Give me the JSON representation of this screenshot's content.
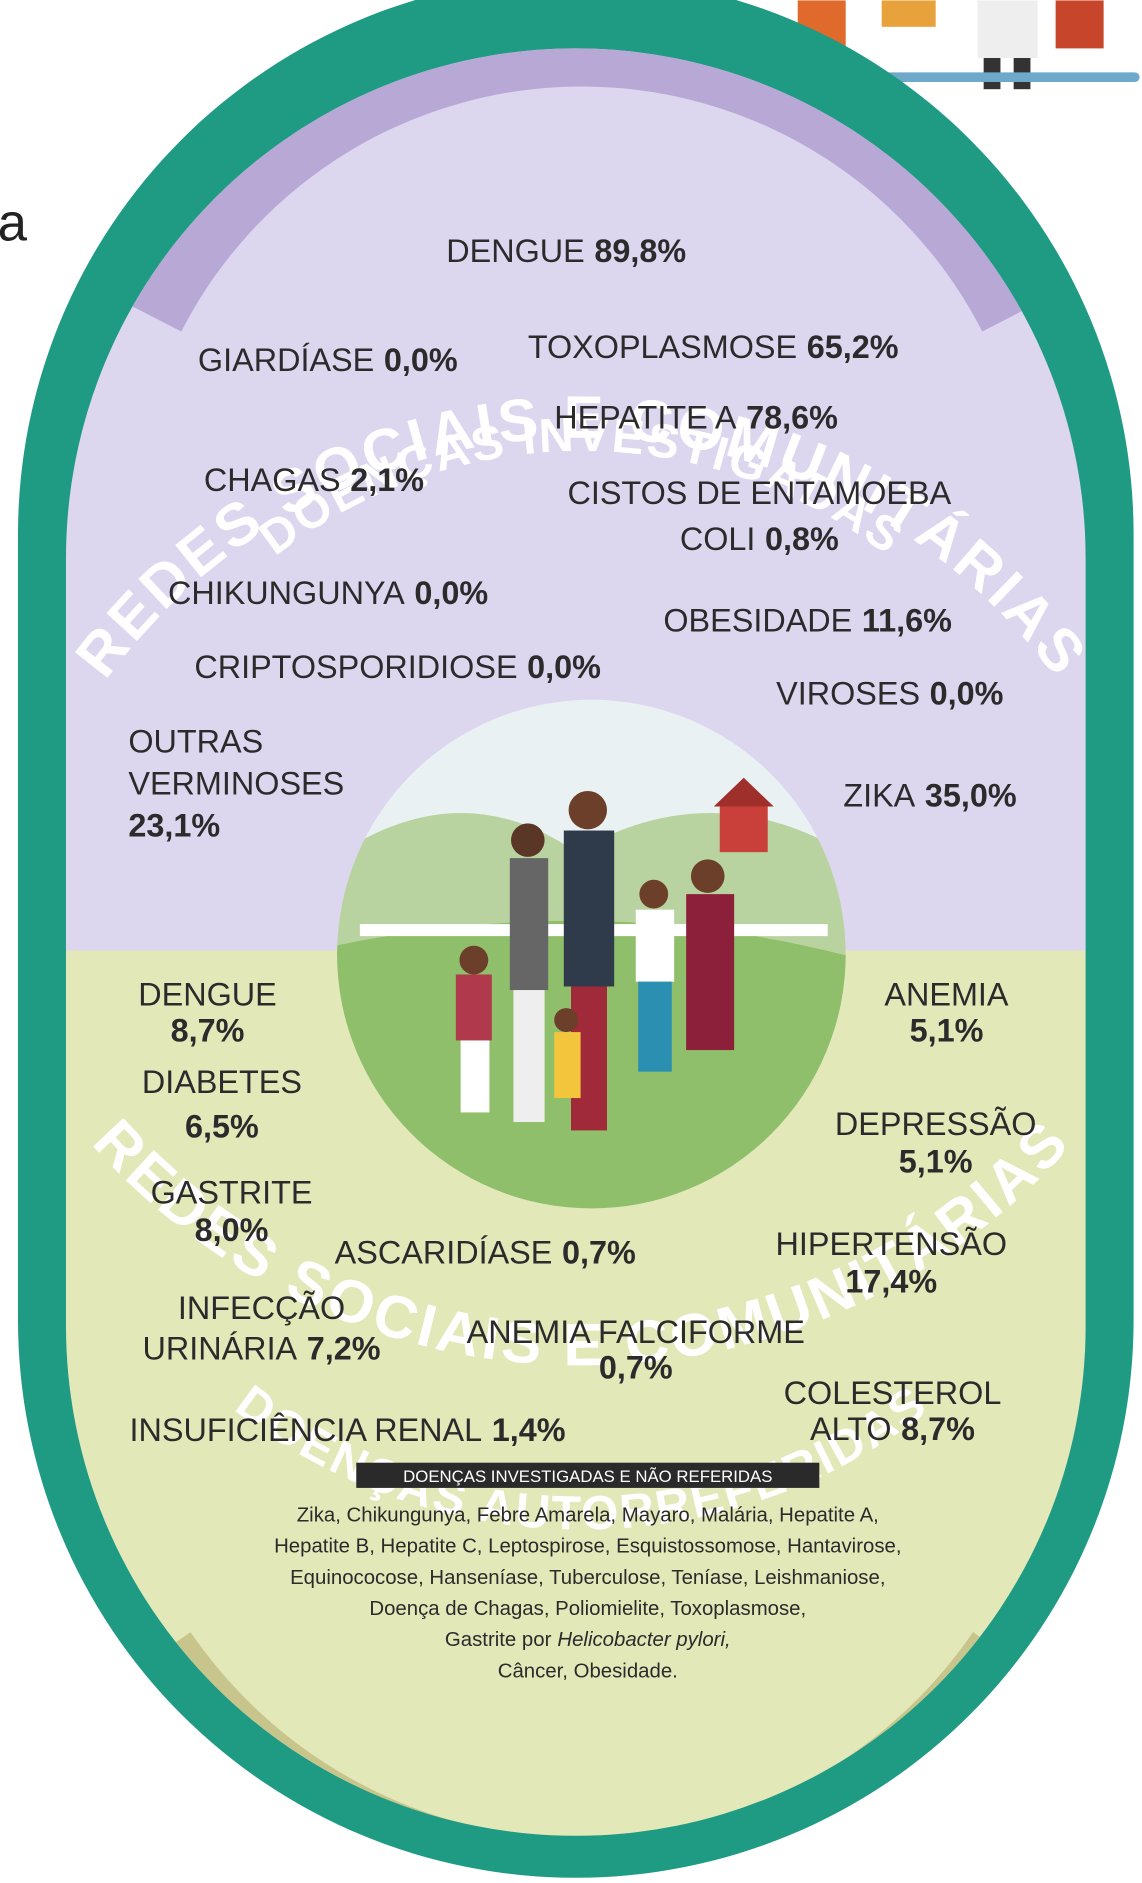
{
  "edge_text": "a",
  "ring_title_top": "REDES SOCIAIS E COMUNITÁRIAS",
  "ring_title_bottom": "REDES SOCIAIS E COMUNITÁRIAS",
  "investigated": {
    "title": "DOENÇAS INVESTIGADAS",
    "items": [
      {
        "name": [
          "DENGUE"
        ],
        "value": "89,8%"
      },
      {
        "name": [
          "GIARDÍASE"
        ],
        "value": "0,0%"
      },
      {
        "name": [
          "TOXOPLASMOSE"
        ],
        "value": "65,2%"
      },
      {
        "name": [
          "HEPATITE A"
        ],
        "value": "78,6%"
      },
      {
        "name": [
          "CHAGAS"
        ],
        "value": "2,1%"
      },
      {
        "name": [
          "CISTOS DE ENTAMOEBA",
          "COLI"
        ],
        "value": "0,8%"
      },
      {
        "name": [
          "CHIKUNGUNYA"
        ],
        "value": "0,0%"
      },
      {
        "name": [
          "OBESIDADE"
        ],
        "value": "11,6%"
      },
      {
        "name": [
          "CRIPTOSPORIDIOSE"
        ],
        "value": "0,0%"
      },
      {
        "name": [
          "VIROSES"
        ],
        "value": "0,0%"
      },
      {
        "name": [
          "OUTRAS",
          "VERMINOSES"
        ],
        "value": "23,1%"
      },
      {
        "name": [
          "ZIKA"
        ],
        "value": "35,0%"
      }
    ]
  },
  "self_reported": {
    "title": "DOENÇAS AUTORREFERIDAS",
    "items": [
      {
        "name": [
          "DENGUE"
        ],
        "value": "8,7%"
      },
      {
        "name": [
          "DIABETES"
        ],
        "value": "6,5%"
      },
      {
        "name": [
          "GASTRITE"
        ],
        "value": "8,0%"
      },
      {
        "name": [
          "ASCARIDÍASE"
        ],
        "value": "0,7%"
      },
      {
        "name": [
          "INFECÇÃO",
          "URINÁRIA"
        ],
        "value": "7,2%"
      },
      {
        "name": [
          "ANEMIA FALCIFORME"
        ],
        "value": "0,7%"
      },
      {
        "name": [
          "INSUFICIÊNCIA RENAL"
        ],
        "value": "1,4%"
      },
      {
        "name": [
          "ANEMIA"
        ],
        "value": "5,1%"
      },
      {
        "name": [
          "DEPRESSÃO"
        ],
        "value": "5,1%"
      },
      {
        "name": [
          "HIPERTENSÃO"
        ],
        "value": "17,4%"
      },
      {
        "name": [
          "COLESTEROL",
          "ALTO"
        ],
        "value": "8,7%"
      }
    ]
  },
  "not_reported": {
    "title": "DOENÇAS INVESTIGADAS E NÃO REFERIDAS",
    "lines": [
      "Zika, Chikungunya, Febre Amarela, Mayaro, Malária, Hepatite A,",
      "Hepatite B, Hepatite C, Leptospirose, Esquistossomose, Hantavirose,",
      "Equinococose, Hanseníase, Tuberculose, Teníase, Leishmaniose,",
      "Doença de Chagas, Poliomielite, Toxoplasmose,",
      "Gastrite por",
      "Câncer, Obesidade."
    ],
    "italic": "Helicobacter pylori,"
  }
}
